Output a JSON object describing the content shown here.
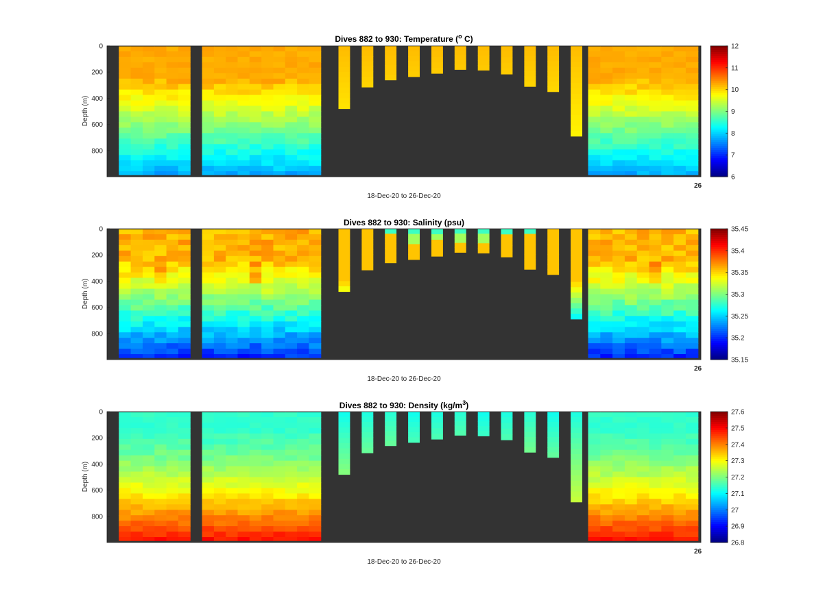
{
  "chart_data": [
    {
      "type": "heatmap",
      "title": "Dives 882 to 930: Temperature (",
      "title_degree": "o",
      "title_suffix": " C)",
      "ylabel": "Depth (m)",
      "xlabel": "18-Dec-20 to 26-Dec-20",
      "corner_label": "26",
      "y_ticks": [
        "0",
        "200",
        "400",
        "600",
        "800"
      ],
      "ylim": [
        0,
        1000
      ],
      "y_reversed": true,
      "colorbar": {
        "min": 6,
        "max": 12,
        "ticks": [
          "12",
          "11",
          "10",
          "9",
          "8",
          "7",
          "6"
        ]
      },
      "colormap": "jet",
      "background_color": "#333333",
      "gaps_x_fraction": [
        [
          0.14,
          0.16
        ],
        [
          0.364,
          0.38
        ]
      ],
      "short_dives_x_fraction": [
        0.38,
        0.81
      ],
      "short_dive_depths_m": [
        480,
        315,
        260,
        235,
        210,
        180,
        185,
        215,
        310,
        350,
        690
      ],
      "surface_value": 10.2,
      "deep_value": 8.0
    },
    {
      "type": "heatmap",
      "title": "Dives 882 to 930: Salinity (psu)",
      "ylabel": "Depth (m)",
      "xlabel": "18-Dec-20 to 26-Dec-20",
      "corner_label": "26",
      "y_ticks": [
        "0",
        "200",
        "400",
        "600",
        "800"
      ],
      "ylim": [
        0,
        1000
      ],
      "y_reversed": true,
      "colorbar": {
        "min": 35.15,
        "max": 35.45,
        "ticks": [
          "35.45",
          "35.4",
          "35.35",
          "35.3",
          "35.25",
          "35.2",
          "35.15"
        ]
      },
      "colormap": "jet",
      "background_color": "#333333",
      "short_dive_depths_m": [
        480,
        315,
        260,
        235,
        210,
        180,
        185,
        215,
        310,
        350,
        690
      ],
      "surface_value": 35.36,
      "deep_value": 35.2
    },
    {
      "type": "heatmap",
      "title": "Dives 882 to 930: Density (kg/m",
      "title_superscript": "3",
      "title_suffix": ")",
      "ylabel": "Depth (m)",
      "xlabel": "18-Dec-20 to 26-Dec-20",
      "corner_label": "26",
      "y_ticks": [
        "0",
        "200",
        "400",
        "600",
        "800"
      ],
      "ylim": [
        0,
        1000
      ],
      "y_reversed": true,
      "colorbar": {
        "min": 26.8,
        "max": 27.6,
        "ticks": [
          "27.6",
          "27.5",
          "27.4",
          "27.3",
          "27.2",
          "27.1",
          "27",
          "26.9",
          "26.8"
        ]
      },
      "colormap": "jet",
      "background_color": "#333333",
      "short_dive_depths_m": [
        480,
        315,
        260,
        235,
        210,
        180,
        185,
        215,
        310,
        350,
        690
      ],
      "surface_value": 27.12,
      "deep_value": 27.42
    }
  ]
}
